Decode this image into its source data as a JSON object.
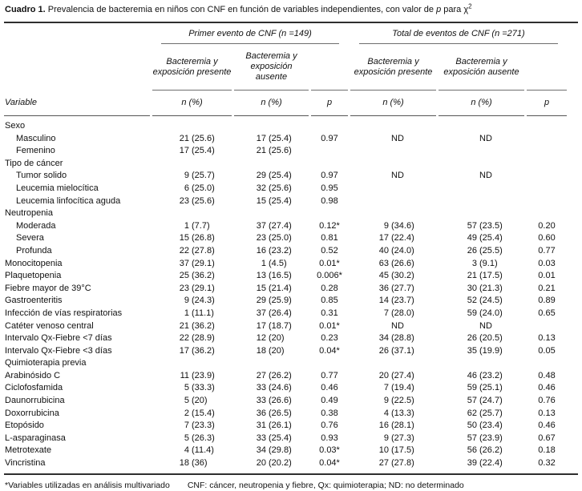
{
  "title": {
    "prefix": "Cuadro 1.",
    "body": " Prevalencia de bacteremia en niños con CNF en función de variables independientes, con valor de ",
    "p_symbol": "p",
    "suffix": " para χ",
    "exponent": "2"
  },
  "header": {
    "group_first": "Primer evento de CNF (n =149)",
    "group_total": "Total de eventos de CNF (n =271)",
    "sub_present_line1": "Bacteremia y",
    "sub_present_line2": "exposición presente",
    "sub_absent_line1": "Bacteremia y",
    "sub_absent_line2": "exposición ausente",
    "variable": "Variable",
    "n_pct": "n (%)",
    "p": "p"
  },
  "table": {
    "rows": [
      {
        "label": "Sexo"
      },
      {
        "label": "Masculino",
        "indent": true,
        "cells": [
          "21",
          "(25.6)",
          "17",
          "(25.4)",
          "0.97",
          "",
          "ND",
          "",
          "ND",
          ""
        ]
      },
      {
        "label": "Femenino",
        "indent": true,
        "cells": [
          "17",
          "(25.4)",
          "21",
          "(25.6)",
          "",
          "",
          "",
          "",
          "",
          ""
        ]
      },
      {
        "label": "Tipo de cáncer"
      },
      {
        "label": "Tumor solido",
        "indent": true,
        "cells": [
          "9",
          "(25.7)",
          "29",
          "(25.4)",
          "0.97",
          "",
          "ND",
          "",
          "ND",
          ""
        ]
      },
      {
        "label": "Leucemia mielocítica",
        "indent": true,
        "cells": [
          "6",
          "(25.0)",
          "32",
          "(25.6)",
          "0.95",
          "",
          "",
          "",
          "",
          ""
        ]
      },
      {
        "label": "Leucemia linfocítica aguda",
        "indent": true,
        "cells": [
          "23",
          "(25.6)",
          "15",
          "(25.4)",
          "0.98",
          "",
          "",
          "",
          "",
          ""
        ]
      },
      {
        "label": "Neutropenia"
      },
      {
        "label": "Moderada",
        "indent": true,
        "cells": [
          "1",
          "(7.7)",
          "37",
          "(27.4)",
          "0.12*",
          "9",
          "(34.6)",
          "57",
          "(23.5)",
          "0.20"
        ]
      },
      {
        "label": "Severa",
        "indent": true,
        "cells": [
          "15",
          "(26.8)",
          "23",
          "(25.0)",
          "0.81",
          "17",
          "(22.4)",
          "49",
          "(25.4)",
          "0.60"
        ]
      },
      {
        "label": "Profunda",
        "indent": true,
        "cells": [
          "22",
          "(27.8)",
          "16",
          "(23.2)",
          "0.52",
          "40",
          "(24.0)",
          "26",
          "(25.5)",
          "0.77"
        ]
      },
      {
        "label": "Monocitopenia",
        "cells": [
          "37",
          "(29.1)",
          "1",
          "(4.5)",
          "0.01*",
          "63",
          "(26.6)",
          "3",
          "(9.1)",
          "0.03"
        ]
      },
      {
        "label": "Plaquetopenia",
        "cells": [
          "25",
          "(36.2)",
          "13",
          "(16.5)",
          "0.006*",
          "45",
          "(30.2)",
          "21",
          "(17.5)",
          "0.01"
        ]
      },
      {
        "label": "Fiebre mayor de 39°C",
        "cells": [
          "23",
          "(29.1)",
          "15",
          "(21.4)",
          "0.28",
          "36",
          "(27.7)",
          "30",
          "(21.3)",
          "0.21"
        ]
      },
      {
        "label": "Gastroenteritis",
        "cells": [
          "9",
          "(24.3)",
          "29",
          "(25.9)",
          "0.85",
          "14",
          "(23.7)",
          "52",
          "(24.5)",
          "0.89"
        ]
      },
      {
        "label": "Infección de vías respiratorias",
        "cells": [
          "1",
          "(11.1)",
          "37",
          "(26.4)",
          "0.31",
          "7",
          "(28.0)",
          "59",
          "(24.0)",
          "0.65"
        ]
      },
      {
        "label": "Catéter venoso central",
        "cells": [
          "21",
          "(36.2)",
          "17",
          "(18.7)",
          "0.01*",
          "",
          "ND",
          "",
          "ND",
          ""
        ]
      },
      {
        "label": "Intervalo Qx-Fiebre <7 días",
        "cells": [
          "22",
          "(28.9)",
          "12",
          "(20)",
          "0.23",
          "34",
          "(28.8)",
          "26",
          "(20.5)",
          "0.13"
        ]
      },
      {
        "label": "Intervalo Qx-Fiebre <3 días",
        "cells": [
          "17",
          "(36.2)",
          "18",
          "(20)",
          "0.04*",
          "26",
          "(37.1)",
          "35",
          "(19.9)",
          "0.05"
        ]
      },
      {
        "label": "Quimioterapia previa"
      },
      {
        "label": "Arabinósido C",
        "cells": [
          "11",
          "(23.9)",
          "27",
          "(26.2)",
          "0.77",
          "20",
          "(27.4)",
          "46",
          "(23.2)",
          "0.48"
        ]
      },
      {
        "label": "Ciclofosfamida",
        "cells": [
          "5",
          "(33.3)",
          "33",
          "(24.6)",
          "0.46",
          "7",
          "(19.4)",
          "59",
          "(25.1)",
          "0.46"
        ]
      },
      {
        "label": "Daunorrubicina",
        "cells": [
          "5",
          "(20)",
          "33",
          "(26.6)",
          "0.49",
          "9",
          "(22.5)",
          "57",
          "(24.7)",
          "0.76"
        ]
      },
      {
        "label": "Doxorrubicina",
        "cells": [
          "2",
          "(15.4)",
          "36",
          "(26.5)",
          "0.38",
          "4",
          "(13.3)",
          "62",
          "(25.7)",
          "0.13"
        ]
      },
      {
        "label": "Etopósido",
        "cells": [
          "7",
          "(23.3)",
          "31",
          "(26.1)",
          "0.76",
          "16",
          "(28.1)",
          "50",
          "(23.4)",
          "0.46"
        ]
      },
      {
        "label": "L-asparaginasa",
        "cells": [
          "5",
          "(26.3)",
          "33",
          "(25.4)",
          "0.93",
          "9",
          "(27.3)",
          "57",
          "(23.9)",
          "0.67"
        ]
      },
      {
        "label": "Metrotexate",
        "cells": [
          "4",
          "(11.4)",
          "34",
          "(29.8)",
          "0.03*",
          "10",
          "(17.5)",
          "56",
          "(26.2)",
          "0.18"
        ]
      },
      {
        "label": "Vincristina",
        "cells": [
          "18",
          "(36)",
          "20",
          "(20.2)",
          "0.04*",
          "27",
          "(27.8)",
          "39",
          "(22.4)",
          "0.32"
        ]
      }
    ]
  },
  "footnote": {
    "note1": "*Variables utilizadas en análisis multivariado",
    "note2": "CNF: cáncer, neutropenia y fiebre, Qx: quimioterapia; ND: no determinado"
  },
  "colors": {
    "background": "#ffffff",
    "text": "#111111",
    "rule_thick": "#2e2e2e",
    "rule_thin": "#6e6e6e"
  }
}
